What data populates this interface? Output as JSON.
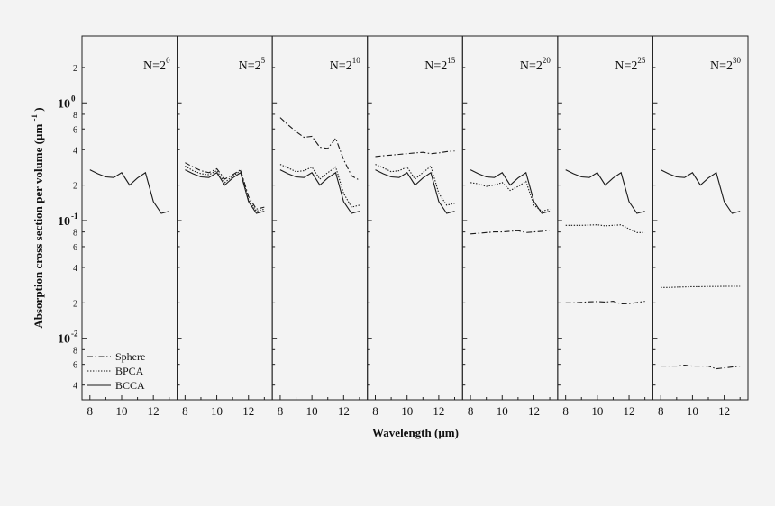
{
  "chart_data": {
    "type": "line",
    "xlabel": "Wavelength (µm)",
    "ylabel": "Absorption cross section per volume (µm",
    "ylabel_sup": "-1",
    "ylabel_close": ")",
    "ylim": [
      0.003,
      3.7
    ],
    "yscale": "log",
    "xlim": [
      7.5,
      13.5
    ],
    "x_ticks": [
      8,
      10,
      12
    ],
    "x_tick_labels": [
      "8",
      "10",
      "12"
    ],
    "y_major_ticks": [
      0.01,
      0.1,
      1
    ],
    "y_major_labels": [
      {
        "base": "10",
        "exp": "-2"
      },
      {
        "base": "10",
        "exp": "-1"
      },
      {
        "base": "10",
        "exp": "0"
      }
    ],
    "y_minor_ticks": [
      0.004,
      0.006,
      0.008,
      0.02,
      0.04,
      0.06,
      0.08,
      0.2,
      0.4,
      0.6,
      0.8,
      2
    ],
    "y_minor_labels": [
      "4",
      "6",
      "8",
      "2",
      "4",
      "6",
      "8",
      "2",
      "4",
      "6",
      "8",
      "2"
    ],
    "legend": {
      "placement": "bottom-left",
      "entries": [
        {
          "name": "Sphere",
          "style": "dashdot"
        },
        {
          "name": "BPCA",
          "style": "dotted"
        },
        {
          "name": "BCCA",
          "style": "solid"
        }
      ]
    },
    "x": [
      8,
      8.5,
      9,
      9.5,
      10,
      10.5,
      11,
      11.5,
      12,
      12.5,
      13
    ],
    "panels": [
      {
        "label": {
          "prefix": "N=2",
          "exp": "0"
        },
        "series": [
          {
            "name": "BCCA",
            "style": "solid",
            "values": [
              0.27,
              0.25,
              0.235,
              0.232,
              0.255,
              0.2,
              0.23,
              0.255,
              0.145,
              0.115,
              0.12
            ]
          }
        ]
      },
      {
        "label": {
          "prefix": "N=2",
          "exp": "5"
        },
        "series": [
          {
            "name": "Sphere",
            "style": "dashdot",
            "values": [
              0.31,
              0.285,
              0.265,
              0.255,
              0.275,
              0.225,
              0.245,
              0.27,
              0.16,
              0.125,
              0.13
            ]
          },
          {
            "name": "BPCA",
            "style": "dotted",
            "values": [
              0.29,
              0.265,
              0.25,
              0.245,
              0.265,
              0.21,
              0.238,
              0.265,
              0.15,
              0.12,
              0.125
            ]
          },
          {
            "name": "BCCA",
            "style": "solid",
            "values": [
              0.27,
              0.25,
              0.235,
              0.232,
              0.255,
              0.2,
              0.23,
              0.255,
              0.145,
              0.115,
              0.12
            ]
          }
        ]
      },
      {
        "label": {
          "prefix": "N=2",
          "exp": "10"
        },
        "series": [
          {
            "name": "Sphere",
            "style": "dashdot",
            "values": [
              0.75,
              0.65,
              0.57,
              0.51,
              0.52,
              0.42,
              0.41,
              0.5,
              0.33,
              0.24,
              0.22
            ]
          },
          {
            "name": "BPCA",
            "style": "dotted",
            "values": [
              0.3,
              0.28,
              0.26,
              0.265,
              0.285,
              0.225,
              0.255,
              0.285,
              0.17,
              0.13,
              0.135
            ]
          },
          {
            "name": "BCCA",
            "style": "solid",
            "values": [
              0.27,
              0.25,
              0.235,
              0.232,
              0.255,
              0.2,
              0.23,
              0.255,
              0.145,
              0.115,
              0.12
            ]
          }
        ]
      },
      {
        "label": {
          "prefix": "N=2",
          "exp": "15"
        },
        "series": [
          {
            "name": "Sphere",
            "style": "dashdot",
            "values": [
              0.35,
              0.355,
              0.36,
              0.365,
              0.37,
              0.375,
              0.38,
              0.37,
              0.375,
              0.385,
              0.39
            ]
          },
          {
            "name": "BPCA",
            "style": "dotted",
            "values": [
              0.3,
              0.28,
              0.26,
              0.265,
              0.285,
              0.225,
              0.255,
              0.29,
              0.17,
              0.135,
              0.14
            ]
          },
          {
            "name": "BCCA",
            "style": "solid",
            "values": [
              0.27,
              0.25,
              0.235,
              0.232,
              0.255,
              0.2,
              0.23,
              0.255,
              0.145,
              0.115,
              0.12
            ]
          }
        ]
      },
      {
        "label": {
          "prefix": "N=2",
          "exp": "20"
        },
        "series": [
          {
            "name": "Sphere",
            "style": "dashdot",
            "values": [
              0.077,
              0.078,
              0.079,
              0.08,
              0.08,
              0.081,
              0.082,
              0.079,
              0.08,
              0.081,
              0.083
            ]
          },
          {
            "name": "BPCA",
            "style": "dotted",
            "values": [
              0.21,
              0.205,
              0.195,
              0.2,
              0.21,
              0.18,
              0.195,
              0.215,
              0.135,
              0.12,
              0.125
            ]
          },
          {
            "name": "BCCA",
            "style": "solid",
            "values": [
              0.27,
              0.25,
              0.235,
              0.232,
              0.255,
              0.2,
              0.23,
              0.255,
              0.145,
              0.115,
              0.12
            ]
          }
        ]
      },
      {
        "label": {
          "prefix": "N=2",
          "exp": "25"
        },
        "series": [
          {
            "name": "Sphere",
            "style": "dashdot",
            "values": [
              0.02,
              0.02,
              0.0202,
              0.0204,
              0.0205,
              0.0203,
              0.0206,
              0.0196,
              0.0197,
              0.0201,
              0.0206
            ]
          },
          {
            "name": "BPCA",
            "style": "dotted",
            "values": [
              0.091,
              0.091,
              0.091,
              0.0915,
              0.092,
              0.09,
              0.091,
              0.092,
              0.085,
              0.079,
              0.079
            ]
          },
          {
            "name": "BCCA",
            "style": "solid",
            "values": [
              0.27,
              0.25,
              0.235,
              0.232,
              0.255,
              0.2,
              0.23,
              0.255,
              0.145,
              0.115,
              0.12
            ]
          }
        ]
      },
      {
        "label": {
          "prefix": "N=2",
          "exp": "30"
        },
        "series": [
          {
            "name": "Sphere",
            "style": "dashdot",
            "values": [
              0.0058,
              0.0058,
              0.0058,
              0.0059,
              0.0058,
              0.0058,
              0.0058,
              0.0055,
              0.0056,
              0.0057,
              0.0058
            ]
          },
          {
            "name": "BPCA",
            "style": "dotted",
            "values": [
              0.027,
              0.027,
              0.0272,
              0.0273,
              0.0274,
              0.0274,
              0.0275,
              0.0275,
              0.0276,
              0.0276,
              0.0276
            ]
          },
          {
            "name": "BCCA",
            "style": "solid",
            "values": [
              0.27,
              0.25,
              0.235,
              0.232,
              0.255,
              0.2,
              0.23,
              0.255,
              0.145,
              0.115,
              0.12
            ]
          }
        ]
      }
    ]
  }
}
